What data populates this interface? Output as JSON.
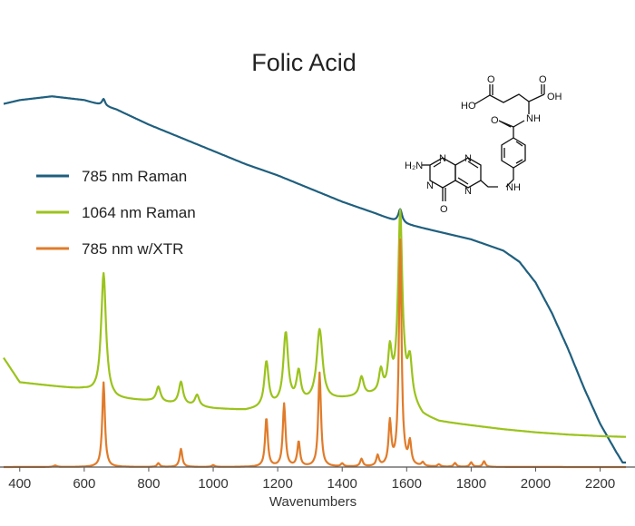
{
  "chart_data": {
    "type": "line",
    "title": "Folic Acid",
    "xlabel": "Wavenumbers",
    "ylabel": "",
    "xlim": [
      350,
      2280
    ],
    "ylim": [
      0,
      1
    ],
    "x_ticks": [
      400,
      600,
      800,
      1000,
      1200,
      1400,
      1600,
      1800,
      2000,
      2200
    ],
    "grid": false,
    "legend_position": "left",
    "series": [
      {
        "name": "785 nm Raman",
        "color": "#1f5f7e",
        "baseline": [
          [
            350,
            0.965
          ],
          [
            400,
            0.975
          ],
          [
            500,
            0.985
          ],
          [
            600,
            0.975
          ],
          [
            660,
            0.96
          ],
          [
            700,
            0.95
          ],
          [
            800,
            0.91
          ],
          [
            900,
            0.875
          ],
          [
            1000,
            0.84
          ],
          [
            1100,
            0.805
          ],
          [
            1200,
            0.775
          ],
          [
            1300,
            0.74
          ],
          [
            1400,
            0.705
          ],
          [
            1500,
            0.675
          ],
          [
            1560,
            0.655
          ],
          [
            1600,
            0.645
          ],
          [
            1700,
            0.625
          ],
          [
            1800,
            0.605
          ],
          [
            1900,
            0.575
          ],
          [
            1950,
            0.545
          ],
          [
            2000,
            0.49
          ],
          [
            2050,
            0.41
          ],
          [
            2100,
            0.315
          ],
          [
            2150,
            0.21
          ],
          [
            2200,
            0.115
          ],
          [
            2250,
            0.04
          ],
          [
            2270,
            0.012
          ]
        ],
        "peaks": [
          [
            660,
            0.018,
            6
          ],
          [
            1580,
            0.035,
            7
          ]
        ]
      },
      {
        "name": "1064 nm Raman",
        "color": "#9bc31c",
        "baseline": [
          [
            350,
            0.29
          ],
          [
            400,
            0.225
          ],
          [
            500,
            0.215
          ],
          [
            600,
            0.205
          ],
          [
            700,
            0.18
          ],
          [
            800,
            0.175
          ],
          [
            900,
            0.165
          ],
          [
            1000,
            0.155
          ],
          [
            1100,
            0.15
          ],
          [
            1200,
            0.16
          ],
          [
            1300,
            0.17
          ],
          [
            1400,
            0.18
          ],
          [
            1500,
            0.19
          ],
          [
            1590,
            0.19
          ],
          [
            1620,
            0.165
          ],
          [
            1650,
            0.135
          ],
          [
            1700,
            0.12
          ],
          [
            1800,
            0.11
          ],
          [
            1900,
            0.1
          ],
          [
            2000,
            0.092
          ],
          [
            2100,
            0.086
          ],
          [
            2200,
            0.082
          ],
          [
            2280,
            0.08
          ]
        ],
        "peaks": [
          [
            660,
            0.325,
            9
          ],
          [
            830,
            0.04,
            8
          ],
          [
            900,
            0.06,
            8
          ],
          [
            950,
            0.03,
            8
          ],
          [
            1165,
            0.12,
            8
          ],
          [
            1225,
            0.19,
            9
          ],
          [
            1265,
            0.08,
            8
          ],
          [
            1330,
            0.19,
            11
          ],
          [
            1460,
            0.05,
            8
          ],
          [
            1520,
            0.06,
            7
          ],
          [
            1548,
            0.11,
            7
          ],
          [
            1580,
            0.48,
            8
          ],
          [
            1610,
            0.1,
            8
          ]
        ]
      },
      {
        "name": "785 nm w/XTR",
        "color": "#e07b2a",
        "baseline": [
          [
            350,
            0.0
          ],
          [
            2280,
            0.0
          ]
        ],
        "peaks": [
          [
            510,
            0.004,
            6
          ],
          [
            660,
            0.225,
            5
          ],
          [
            830,
            0.01,
            5
          ],
          [
            900,
            0.048,
            5
          ],
          [
            1000,
            0.005,
            5
          ],
          [
            1165,
            0.13,
            5
          ],
          [
            1220,
            0.167,
            5
          ],
          [
            1265,
            0.066,
            5
          ],
          [
            1330,
            0.25,
            5
          ],
          [
            1400,
            0.008,
            5
          ],
          [
            1460,
            0.02,
            5
          ],
          [
            1510,
            0.028,
            5
          ],
          [
            1548,
            0.115,
            5
          ],
          [
            1580,
            0.6,
            5
          ],
          [
            1610,
            0.06,
            5
          ],
          [
            1650,
            0.01,
            5
          ],
          [
            1700,
            0.006,
            5
          ],
          [
            1750,
            0.01,
            5
          ],
          [
            1800,
            0.012,
            5
          ],
          [
            1840,
            0.015,
            5
          ]
        ]
      }
    ]
  },
  "molecule": {
    "labels": {
      "ho_left": "HO",
      "o_left": "O",
      "o_right": "O",
      "oh_right": "OH",
      "nh_amide": "NH",
      "o_amide": "O",
      "h2n": "H₂N",
      "n1": "N",
      "hn": "N",
      "n_top": "N",
      "n_right": "N",
      "o_ring": "O",
      "nh_link": "NH"
    }
  }
}
